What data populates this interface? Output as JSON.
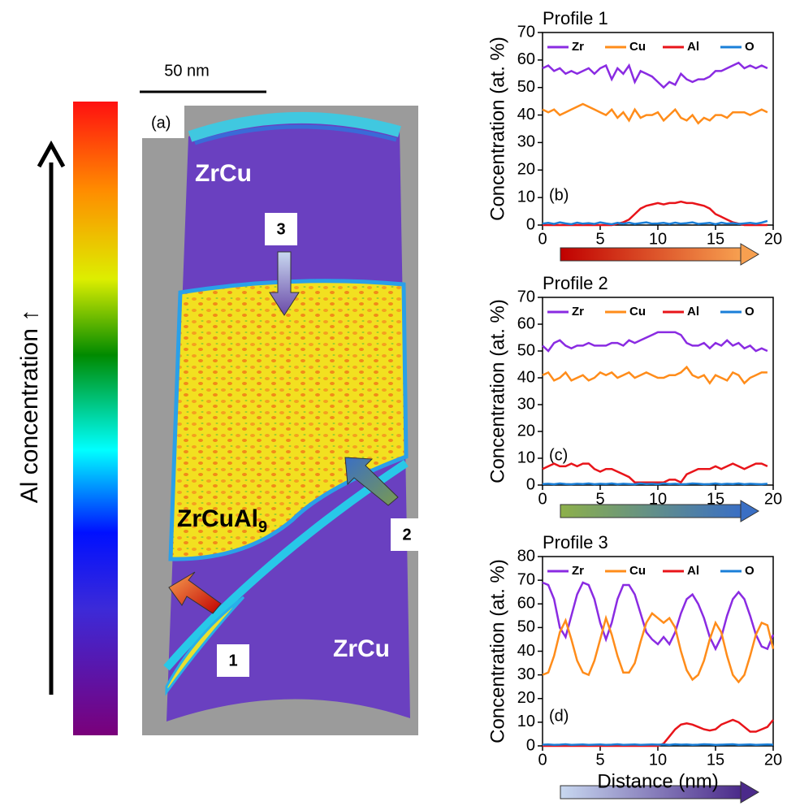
{
  "map": {
    "scale_label": "50 nm",
    "panel_label": "(a)",
    "colorbar_label": "Al concentration ↑",
    "phase_top": "ZrCu",
    "phase_bottom": "ZrCu",
    "phase_middle": {
      "label": "ZrCuAl",
      "subscript": "9"
    },
    "markers": [
      "1",
      "2",
      "3"
    ]
  },
  "chart_data": [
    {
      "type": "line",
      "title": "Profile 1",
      "ylabel": "Concentration (at. %)",
      "panel_label": "(b)",
      "x": [
        0,
        0.5,
        1,
        1.5,
        2,
        2.5,
        3,
        3.5,
        4,
        4.5,
        5,
        5.5,
        6,
        6.5,
        7,
        7.5,
        8,
        8.5,
        9,
        9.5,
        10,
        10.5,
        11,
        11.5,
        12,
        12.5,
        13,
        13.5,
        14,
        14.5,
        15,
        15.5,
        16,
        16.5,
        17,
        17.5,
        18,
        18.5,
        19,
        19.5
      ],
      "series": [
        {
          "name": "Zr",
          "color": "#8a2be2",
          "values": [
            57,
            58,
            56,
            57,
            55,
            56,
            55,
            56,
            57,
            55,
            57,
            58,
            53,
            57,
            55,
            58,
            52,
            56,
            55,
            54,
            52,
            50,
            52,
            51,
            55,
            53,
            52,
            53,
            53,
            54,
            56,
            56,
            57,
            58,
            59,
            57,
            58,
            57,
            58,
            57
          ]
        },
        {
          "name": "Cu",
          "color": "#ff8c1a",
          "values": [
            42,
            41,
            42,
            40,
            41,
            42,
            43,
            44,
            43,
            42,
            41,
            40,
            42,
            39,
            41,
            38,
            42,
            39,
            40,
            40,
            41,
            38,
            40,
            42,
            39,
            38,
            40,
            37,
            39,
            38,
            40,
            40,
            39,
            41,
            41,
            41,
            40,
            41,
            42,
            41
          ]
        },
        {
          "name": "Al",
          "color": "#e8141a",
          "values": [
            0,
            0,
            0,
            0,
            0,
            0,
            0,
            0,
            0,
            0,
            0,
            0,
            0,
            0.5,
            1,
            2,
            4,
            6,
            7,
            7.5,
            8,
            7.5,
            8,
            8,
            8.5,
            8,
            8,
            7.5,
            7,
            6,
            4,
            3,
            2,
            1,
            0.5,
            0,
            0,
            0,
            0,
            0
          ]
        },
        {
          "name": "O",
          "color": "#1a7fd8",
          "values": [
            0.5,
            0.8,
            0.4,
            1,
            0.6,
            0.3,
            0.9,
            0.5,
            0.7,
            0.4,
            1,
            0.6,
            0.3,
            0.8,
            0.5,
            0.9,
            0.4,
            0.7,
            1,
            0.5,
            0.6,
            0.8,
            0.4,
            0.9,
            0.5,
            0.7,
            1,
            0.4,
            0.6,
            0.8,
            0.3,
            0.9,
            0.5,
            0.7,
            0.4,
            0.6,
            0.8,
            0.5,
            0.9,
            1.5
          ]
        }
      ],
      "xlim": [
        0,
        20
      ],
      "xticks": [
        0,
        5,
        10,
        15,
        20
      ],
      "ylim": [
        0,
        70
      ],
      "yticks": [
        0,
        10,
        20,
        30,
        40,
        50,
        60,
        70
      ]
    },
    {
      "type": "line",
      "title": "Profile 2",
      "ylabel": "Concentration (at. %)",
      "panel_label": "(c)",
      "x": [
        0,
        0.5,
        1,
        1.5,
        2,
        2.5,
        3,
        3.5,
        4,
        4.5,
        5,
        5.5,
        6,
        6.5,
        7,
        7.5,
        8,
        8.5,
        9,
        9.5,
        10,
        10.5,
        11,
        11.5,
        12,
        12.5,
        13,
        13.5,
        14,
        14.5,
        15,
        15.5,
        16,
        16.5,
        17,
        17.5,
        18,
        18.5,
        19,
        19.5
      ],
      "series": [
        {
          "name": "Zr",
          "color": "#8a2be2",
          "values": [
            52,
            50,
            53,
            54,
            52,
            51,
            52,
            52,
            53,
            52,
            52,
            52,
            53,
            53,
            52,
            54,
            53,
            54,
            55,
            56,
            57,
            57,
            57,
            57,
            56,
            53,
            52,
            52,
            53,
            51,
            53,
            52,
            54,
            52,
            53,
            51,
            52,
            50,
            51,
            50
          ]
        },
        {
          "name": "Cu",
          "color": "#ff8c1a",
          "values": [
            41,
            42,
            39,
            40,
            42,
            39,
            40,
            41,
            39,
            40,
            42,
            41,
            42,
            40,
            41,
            42,
            40,
            41,
            42,
            41,
            40,
            40,
            41,
            41,
            42,
            44,
            41,
            40,
            41,
            38,
            41,
            40,
            39,
            42,
            41,
            38,
            40,
            41,
            42,
            42
          ]
        },
        {
          "name": "Al",
          "color": "#e8141a",
          "values": [
            6,
            7,
            8,
            7,
            7,
            8,
            7,
            8,
            8,
            6,
            5,
            6,
            6,
            5,
            4,
            3,
            1,
            1,
            1,
            1,
            1,
            1,
            2,
            2,
            1,
            4,
            5,
            6,
            6,
            6,
            7,
            6,
            7,
            8,
            7,
            6,
            7,
            8,
            8,
            7
          ]
        },
        {
          "name": "O",
          "color": "#1a7fd8",
          "values": [
            0.4,
            0.5,
            0.3,
            0.6,
            0.4,
            0.3,
            0.5,
            0.4,
            0.6,
            0.3,
            0.5,
            0.4,
            0.6,
            0.3,
            0.5,
            0.4,
            0.3,
            0.6,
            0.4,
            0.5,
            0.3,
            0.6,
            0.4,
            0.5,
            0.3,
            0.4,
            0.6,
            0.5,
            0.3,
            0.4,
            0.6,
            0.3,
            0.5,
            0.4,
            0.6,
            0.3,
            0.5,
            0.4,
            0.3,
            0.5
          ]
        }
      ],
      "xlim": [
        0,
        20
      ],
      "xticks": [
        0,
        5,
        10,
        15,
        20
      ],
      "ylim": [
        0,
        70
      ],
      "yticks": [
        0,
        10,
        20,
        30,
        40,
        50,
        60,
        70
      ]
    },
    {
      "type": "line",
      "title": "Profile 3",
      "ylabel": "Concentration (at. %)",
      "panel_label": "(d)",
      "xlabel": "Distance (nm)",
      "x": [
        0,
        0.5,
        1,
        1.5,
        2,
        2.5,
        3,
        3.5,
        4,
        4.5,
        5,
        5.5,
        6,
        6.5,
        7,
        7.5,
        8,
        8.5,
        9,
        9.5,
        10,
        10.5,
        11,
        11.5,
        12,
        12.5,
        13,
        13.5,
        14,
        14.5,
        15,
        15.5,
        16,
        16.5,
        17,
        17.5,
        18,
        18.5,
        19,
        19.5,
        20
      ],
      "series": [
        {
          "name": "Zr",
          "color": "#8a2be2",
          "values": [
            69,
            68,
            62,
            50,
            46,
            55,
            64,
            69,
            68,
            62,
            52,
            45,
            52,
            62,
            68,
            68,
            64,
            56,
            48,
            45,
            43,
            46,
            43,
            48,
            56,
            62,
            64,
            60,
            54,
            46,
            41,
            46,
            55,
            62,
            65,
            62,
            55,
            47,
            42,
            41,
            47
          ]
        },
        {
          "name": "Cu",
          "color": "#ff8c1a",
          "values": [
            30,
            31,
            38,
            48,
            53,
            45,
            36,
            31,
            30,
            36,
            45,
            54,
            47,
            38,
            31,
            31,
            35,
            44,
            52,
            56,
            54,
            52,
            54,
            50,
            40,
            32,
            28,
            30,
            36,
            45,
            52,
            48,
            38,
            30,
            27,
            30,
            38,
            47,
            52,
            51,
            41
          ]
        },
        {
          "name": "Al",
          "color": "#e8141a",
          "values": [
            0,
            0,
            0,
            0,
            0,
            0,
            0,
            0,
            0,
            0,
            0,
            0,
            0,
            0,
            0,
            0,
            0,
            0,
            0,
            0,
            0,
            1,
            4,
            7,
            9,
            9.5,
            9,
            8,
            7,
            6.5,
            7,
            9,
            10,
            11,
            10,
            8,
            6,
            6,
            7,
            8,
            11
          ]
        },
        {
          "name": "O",
          "color": "#1a7fd8",
          "values": [
            0.5,
            0.6,
            0.4,
            0.5,
            0.7,
            0.4,
            0.5,
            0.6,
            0.4,
            0.5,
            0.6,
            0.4,
            0.5,
            0.7,
            0.4,
            0.5,
            0.6,
            0.4,
            0.5,
            0.6,
            0.5,
            0.6,
            0.4,
            0.7,
            0.5,
            0.6,
            0.4,
            0.5,
            0.7,
            0.6,
            0.4,
            0.5,
            0.6,
            0.7,
            0.4,
            0.5,
            0.6,
            0.4,
            0.5,
            0.6,
            0.5
          ]
        }
      ],
      "xlim": [
        0,
        20
      ],
      "xticks": [
        0,
        5,
        10,
        15,
        20
      ],
      "ylim": [
        0,
        80
      ],
      "yticks": [
        0,
        10,
        20,
        30,
        40,
        50,
        60,
        70,
        80
      ]
    }
  ]
}
